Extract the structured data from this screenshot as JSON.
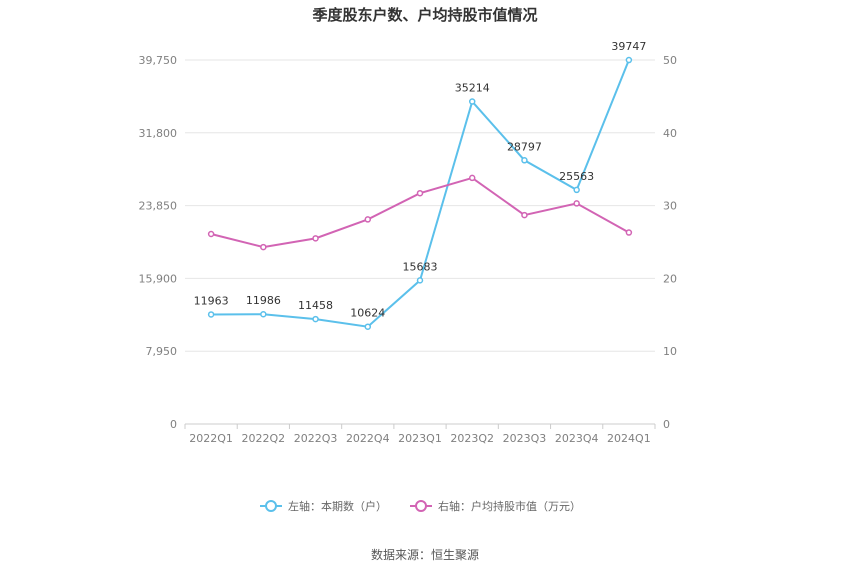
{
  "chart_data": {
    "type": "line",
    "title": "季度股东户数、户均持股市值情况",
    "categories": [
      "2022Q1",
      "2022Q2",
      "2022Q3",
      "2022Q4",
      "2023Q1",
      "2023Q2",
      "2023Q3",
      "2023Q4",
      "2024Q1"
    ],
    "left_axis": {
      "ticks": [
        "0",
        "7,950",
        "15,900",
        "23,850",
        "31,800",
        "39,750"
      ],
      "ylim": [
        0,
        39750
      ]
    },
    "right_axis": {
      "ticks": [
        "0",
        "10",
        "20",
        "30",
        "40",
        "50"
      ],
      "ylim": [
        0,
        50
      ]
    },
    "series": [
      {
        "name": "左轴：本期数（户）",
        "axis": "left",
        "color": "#5bc0eb",
        "values": [
          11963,
          11986,
          11458,
          10624,
          15683,
          35214,
          28797,
          25563,
          39747
        ],
        "labels": [
          "11963",
          "11986",
          "11458",
          "10624",
          "15683",
          "35214",
          "28797",
          "25563",
          "39747"
        ]
      },
      {
        "name": "右轴：户均持股市值（万元）",
        "axis": "right",
        "color": "#d264b4",
        "values": [
          26.1,
          24.3,
          25.5,
          28.1,
          31.7,
          33.8,
          28.7,
          30.3,
          26.3
        ]
      }
    ],
    "grid": true,
    "legend_position": "bottom"
  },
  "source": "数据来源：恒生聚源"
}
